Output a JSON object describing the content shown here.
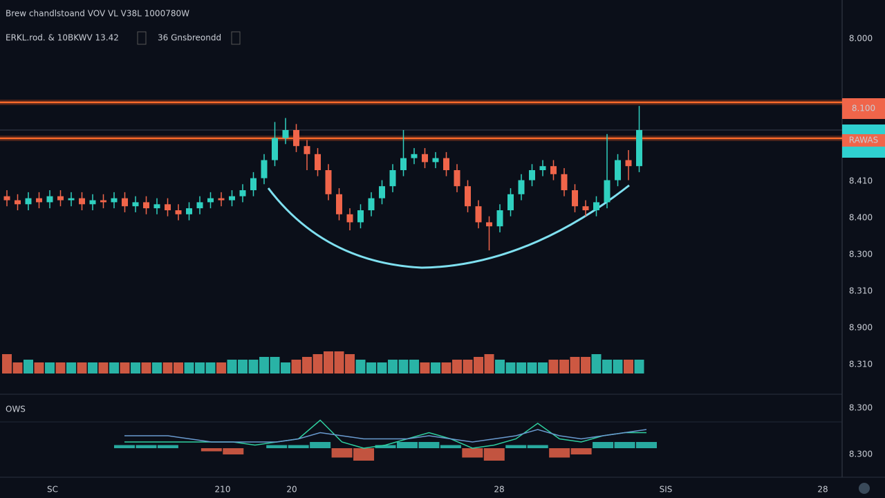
{
  "header": {
    "title": "Brew chandlstoand VOV VL V38L 1000780W",
    "subtitle": "ERKL.rod. & 10BKWV 13.42",
    "selector": "36 Gnsbreondd"
  },
  "price_labels": [
    "8.000",
    "8.410",
    "8.400",
    "8.300",
    "8.310",
    "8.900",
    "8.310",
    "8.300",
    "8.300"
  ],
  "price_tags": [
    "8.100",
    "RAWAS"
  ],
  "time_labels": [
    "SC",
    "210",
    "20",
    "28",
    "SIS",
    "28"
  ],
  "indicator_label": "OWS",
  "chart_data": {
    "type": "candlestick",
    "ylim": [
      0,
      100
    ],
    "open": [
      47,
      45,
      43,
      46,
      44,
      47,
      45,
      46,
      43,
      45,
      44,
      46,
      42,
      44,
      41,
      43,
      40,
      38,
      41,
      44,
      46,
      45,
      47,
      50,
      56,
      65,
      76,
      80,
      72,
      68,
      60,
      48,
      38,
      34,
      40,
      46,
      52,
      60,
      66,
      68,
      64,
      66,
      60,
      52,
      42,
      34,
      32,
      40,
      48,
      55,
      60,
      62,
      58,
      50,
      42,
      40,
      44,
      55,
      65,
      62
    ],
    "high": [
      50,
      48,
      49,
      49,
      50,
      50,
      49,
      49,
      48,
      48,
      49,
      49,
      47,
      47,
      46,
      46,
      43,
      44,
      47,
      49,
      49,
      50,
      53,
      59,
      68,
      84,
      86,
      83,
      75,
      71,
      63,
      51,
      41,
      43,
      49,
      55,
      63,
      80,
      71,
      71,
      69,
      69,
      63,
      55,
      45,
      37,
      43,
      51,
      58,
      63,
      65,
      65,
      61,
      53,
      45,
      47,
      78,
      68,
      70,
      92
    ],
    "low": [
      42,
      40,
      40,
      41,
      41,
      42,
      42,
      40,
      40,
      41,
      41,
      39,
      39,
      38,
      38,
      37,
      35,
      35,
      38,
      41,
      42,
      42,
      44,
      47,
      53,
      62,
      73,
      69,
      60,
      57,
      45,
      35,
      30,
      31,
      37,
      43,
      49,
      57,
      63,
      61,
      61,
      57,
      49,
      39,
      31,
      20,
      29,
      37,
      45,
      52,
      57,
      55,
      47,
      39,
      37,
      37,
      41,
      52,
      55,
      59
    ],
    "close": [
      45,
      43,
      46,
      44,
      47,
      45,
      46,
      43,
      45,
      44,
      46,
      42,
      44,
      41,
      43,
      40,
      38,
      41,
      44,
      46,
      45,
      47,
      50,
      56,
      65,
      76,
      80,
      72,
      68,
      60,
      48,
      38,
      34,
      40,
      46,
      52,
      60,
      66,
      68,
      64,
      66,
      60,
      52,
      42,
      34,
      32,
      40,
      48,
      55,
      60,
      62,
      58,
      50,
      42,
      40,
      44,
      55,
      65,
      62,
      80
    ],
    "up_color": "#2fd0c0",
    "down_color": "#f0654a",
    "volume": {
      "ylim": [
        0,
        10
      ],
      "values": [
        7,
        4,
        5,
        4,
        4,
        4,
        4,
        4,
        4,
        4,
        4,
        4,
        4,
        4,
        4,
        4,
        4,
        4,
        4,
        4,
        4,
        5,
        5,
        5,
        6,
        6,
        4,
        5,
        6,
        7,
        8,
        8,
        7,
        5,
        4,
        4,
        5,
        5,
        5,
        4,
        4,
        4,
        5,
        5,
        6,
        7,
        5,
        4,
        4,
        4,
        4,
        5,
        5,
        6,
        6,
        7,
        5,
        5,
        5,
        5
      ]
    },
    "oscillator": {
      "ylim": [
        -10,
        10
      ],
      "series": [
        {
          "color": "#2fd0a0",
          "values": [
            2,
            2,
            2,
            2,
            2,
            2,
            1,
            2,
            3,
            9,
            2,
            0,
            1,
            3,
            5,
            3,
            0,
            1,
            3,
            8,
            3,
            2,
            4,
            5,
            5
          ]
        },
        {
          "color": "#6a9bd0",
          "values": [
            4,
            4,
            4,
            3,
            2,
            2,
            2,
            2,
            3,
            5,
            4,
            3,
            3,
            3,
            4,
            3,
            2,
            3,
            4,
            6,
            4,
            3,
            4,
            5,
            6
          ]
        }
      ],
      "histogram": [
        1,
        1,
        1,
        0,
        -1,
        -2,
        0,
        1,
        1,
        2,
        -3,
        -4,
        1,
        2,
        2,
        1,
        -3,
        -4,
        1,
        1,
        -3,
        -2,
        2,
        2,
        2
      ]
    }
  }
}
